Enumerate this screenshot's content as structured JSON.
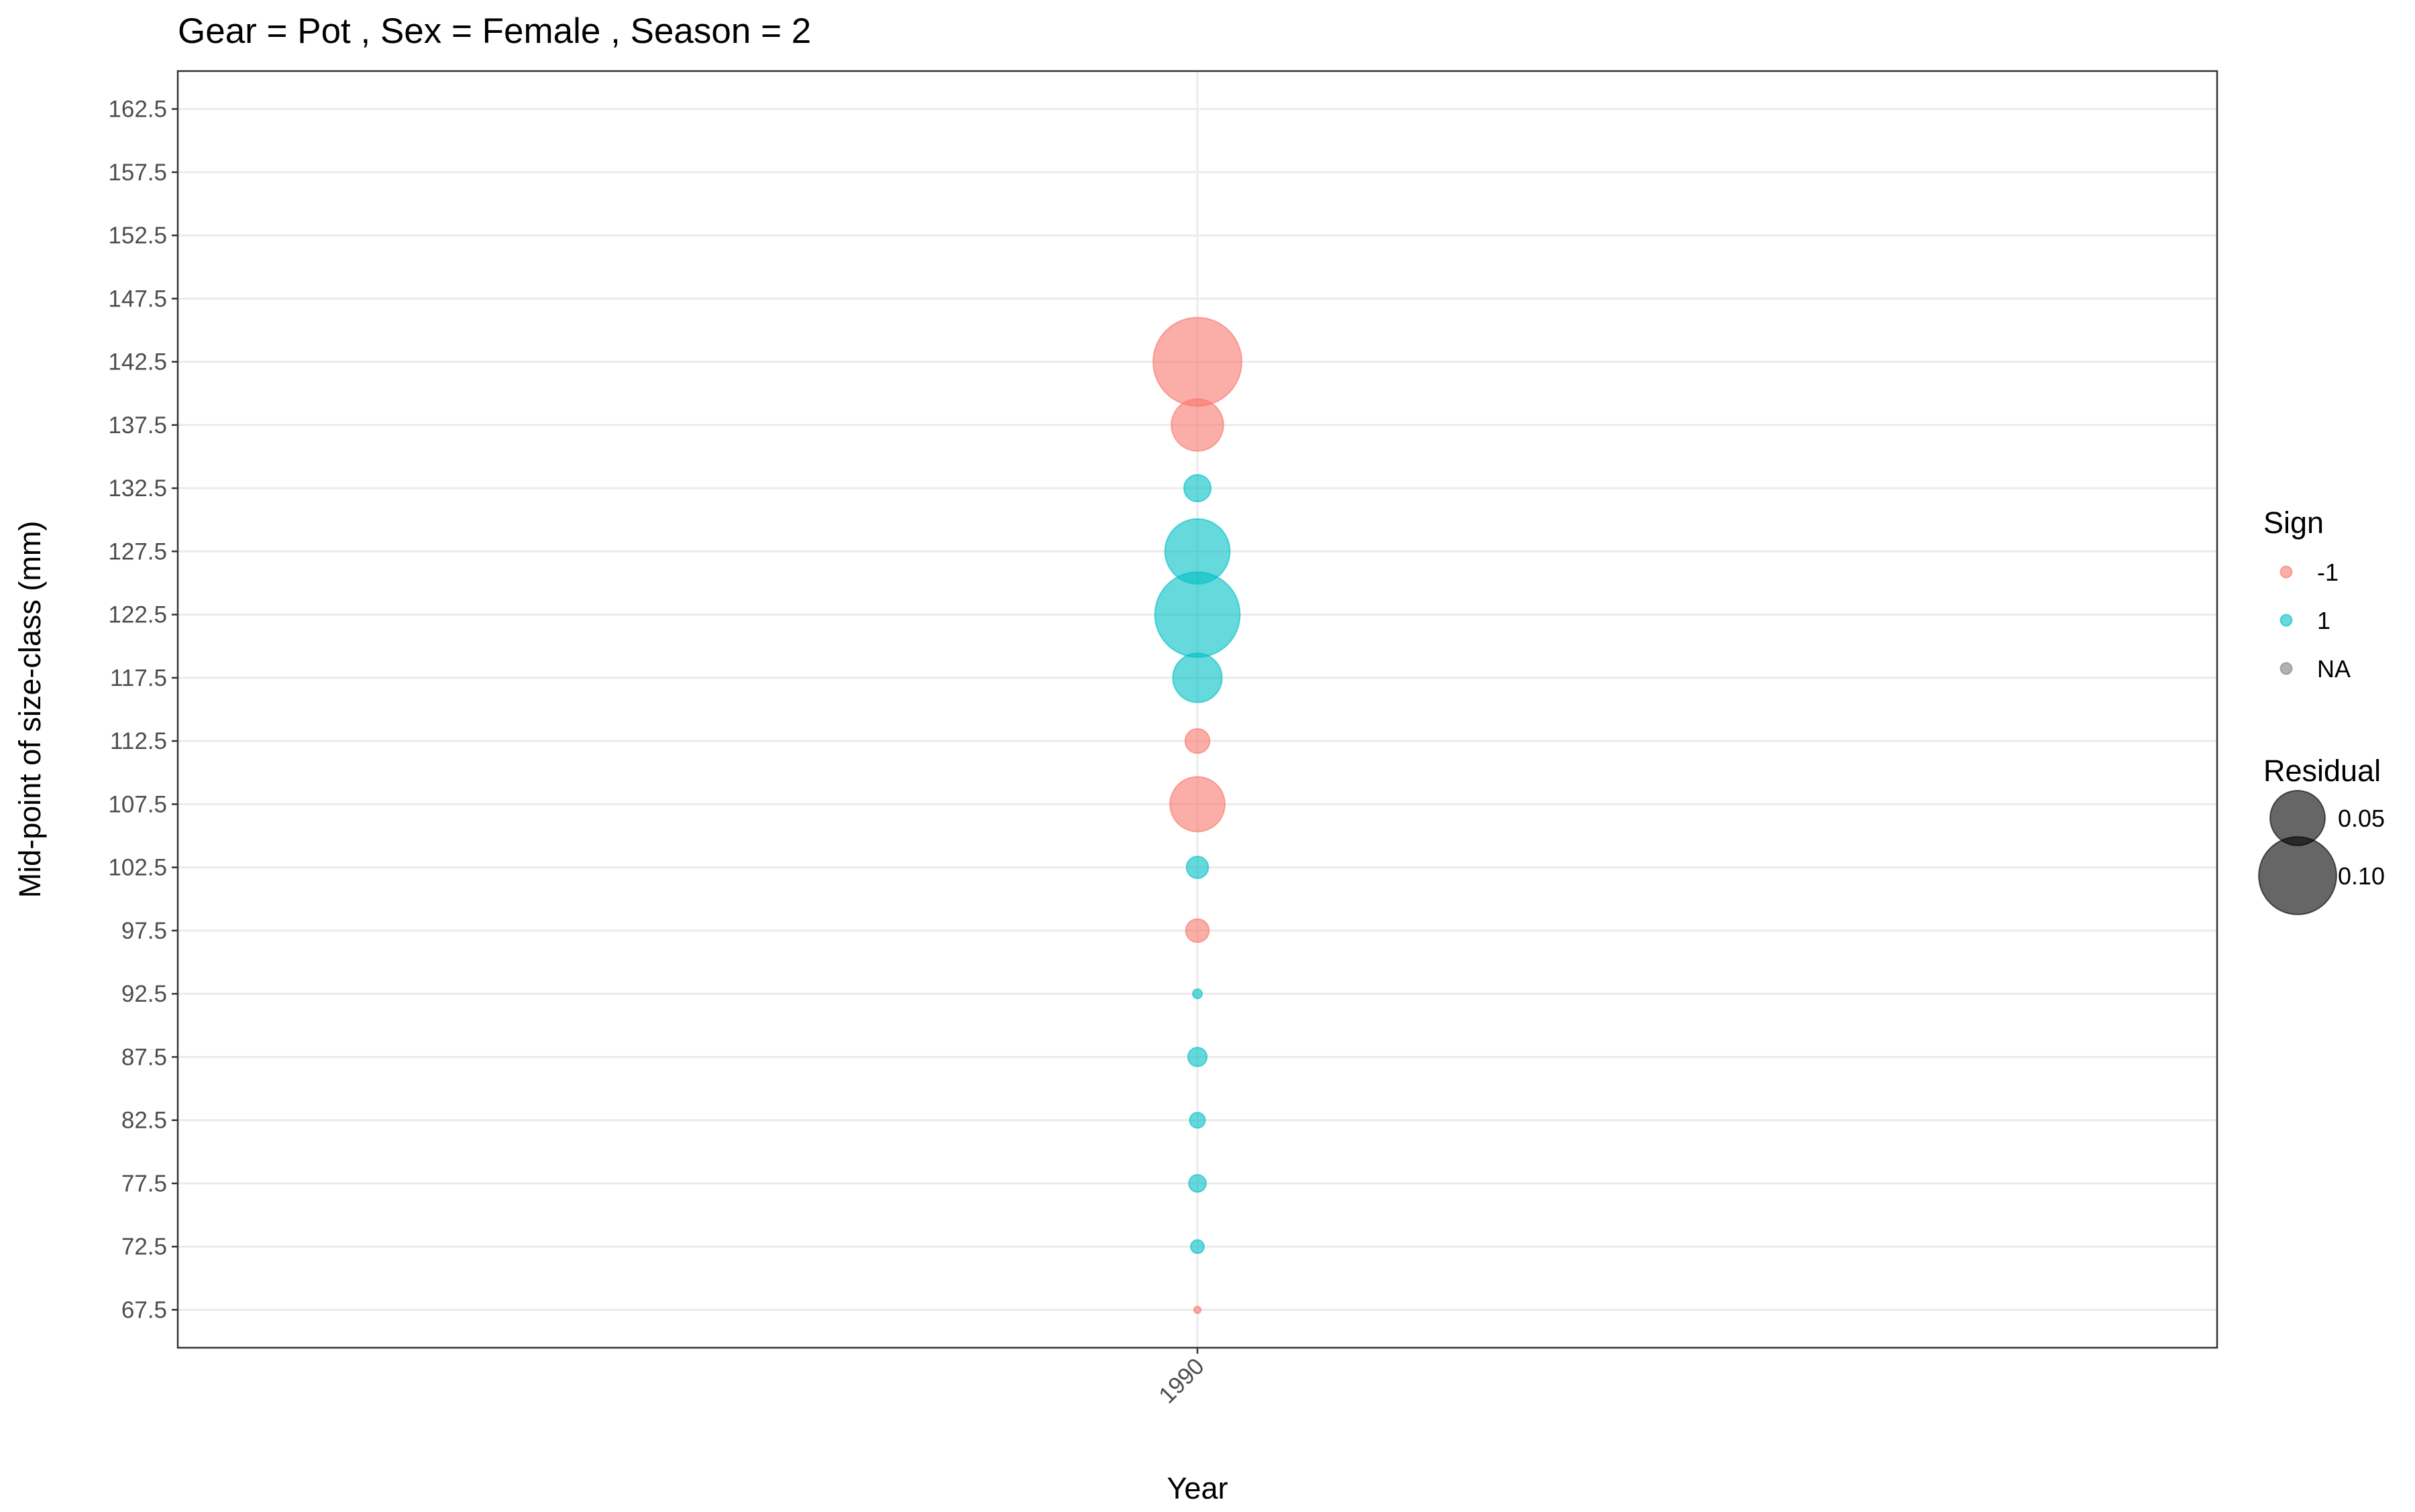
{
  "chart_data": {
    "type": "scatter",
    "title": "Gear = Pot , Sex = Female , Season = 2",
    "xlabel": "Year",
    "ylabel": "Mid-point of size-class (mm)",
    "x_ticks": [
      1990
    ],
    "y_ticks": [
      67.5,
      72.5,
      77.5,
      82.5,
      87.5,
      92.5,
      97.5,
      102.5,
      107.5,
      112.5,
      117.5,
      122.5,
      127.5,
      132.5,
      137.5,
      142.5,
      147.5,
      152.5,
      157.5,
      162.5
    ],
    "ylim": [
      64.5,
      165.5
    ],
    "xlim": [
      1989,
      1991
    ],
    "grid": true,
    "legend_position": "right",
    "colors": {
      "-1": "#F8766D",
      "1": "#00BFC4",
      "NA": "#7F7F7F"
    },
    "points": [
      {
        "year": 1990,
        "size_class": 142.5,
        "residual": 0.13,
        "sign": "-1"
      },
      {
        "year": 1990,
        "size_class": 137.5,
        "residual": 0.045,
        "sign": "-1"
      },
      {
        "year": 1990,
        "size_class": 132.5,
        "residual": 0.012,
        "sign": "1"
      },
      {
        "year": 1990,
        "size_class": 127.5,
        "residual": 0.07,
        "sign": "1"
      },
      {
        "year": 1990,
        "size_class": 122.5,
        "residual": 0.12,
        "sign": "1"
      },
      {
        "year": 1990,
        "size_class": 117.5,
        "residual": 0.04,
        "sign": "1"
      },
      {
        "year": 1990,
        "size_class": 112.5,
        "residual": 0.01,
        "sign": "-1"
      },
      {
        "year": 1990,
        "size_class": 107.5,
        "residual": 0.05,
        "sign": "-1"
      },
      {
        "year": 1990,
        "size_class": 102.5,
        "residual": 0.008,
        "sign": "1"
      },
      {
        "year": 1990,
        "size_class": 97.5,
        "residual": 0.009,
        "sign": "-1"
      },
      {
        "year": 1990,
        "size_class": 92.5,
        "residual": 0.0015,
        "sign": "1"
      },
      {
        "year": 1990,
        "size_class": 87.5,
        "residual": 0.006,
        "sign": "1"
      },
      {
        "year": 1990,
        "size_class": 82.5,
        "residual": 0.004,
        "sign": "1"
      },
      {
        "year": 1990,
        "size_class": 77.5,
        "residual": 0.005,
        "sign": "1"
      },
      {
        "year": 1990,
        "size_class": 72.5,
        "residual": 0.003,
        "sign": "1"
      },
      {
        "year": 1990,
        "size_class": 67.5,
        "residual": 0.0008,
        "sign": "-1"
      }
    ],
    "legend": {
      "sign_title": "Sign",
      "sign_entries": [
        "-1",
        "1",
        "NA"
      ],
      "size_title": "Residual",
      "size_entries": [
        {
          "label": "0.05",
          "value": 0.05
        },
        {
          "label": "0.10",
          "value": 0.1
        }
      ]
    }
  }
}
